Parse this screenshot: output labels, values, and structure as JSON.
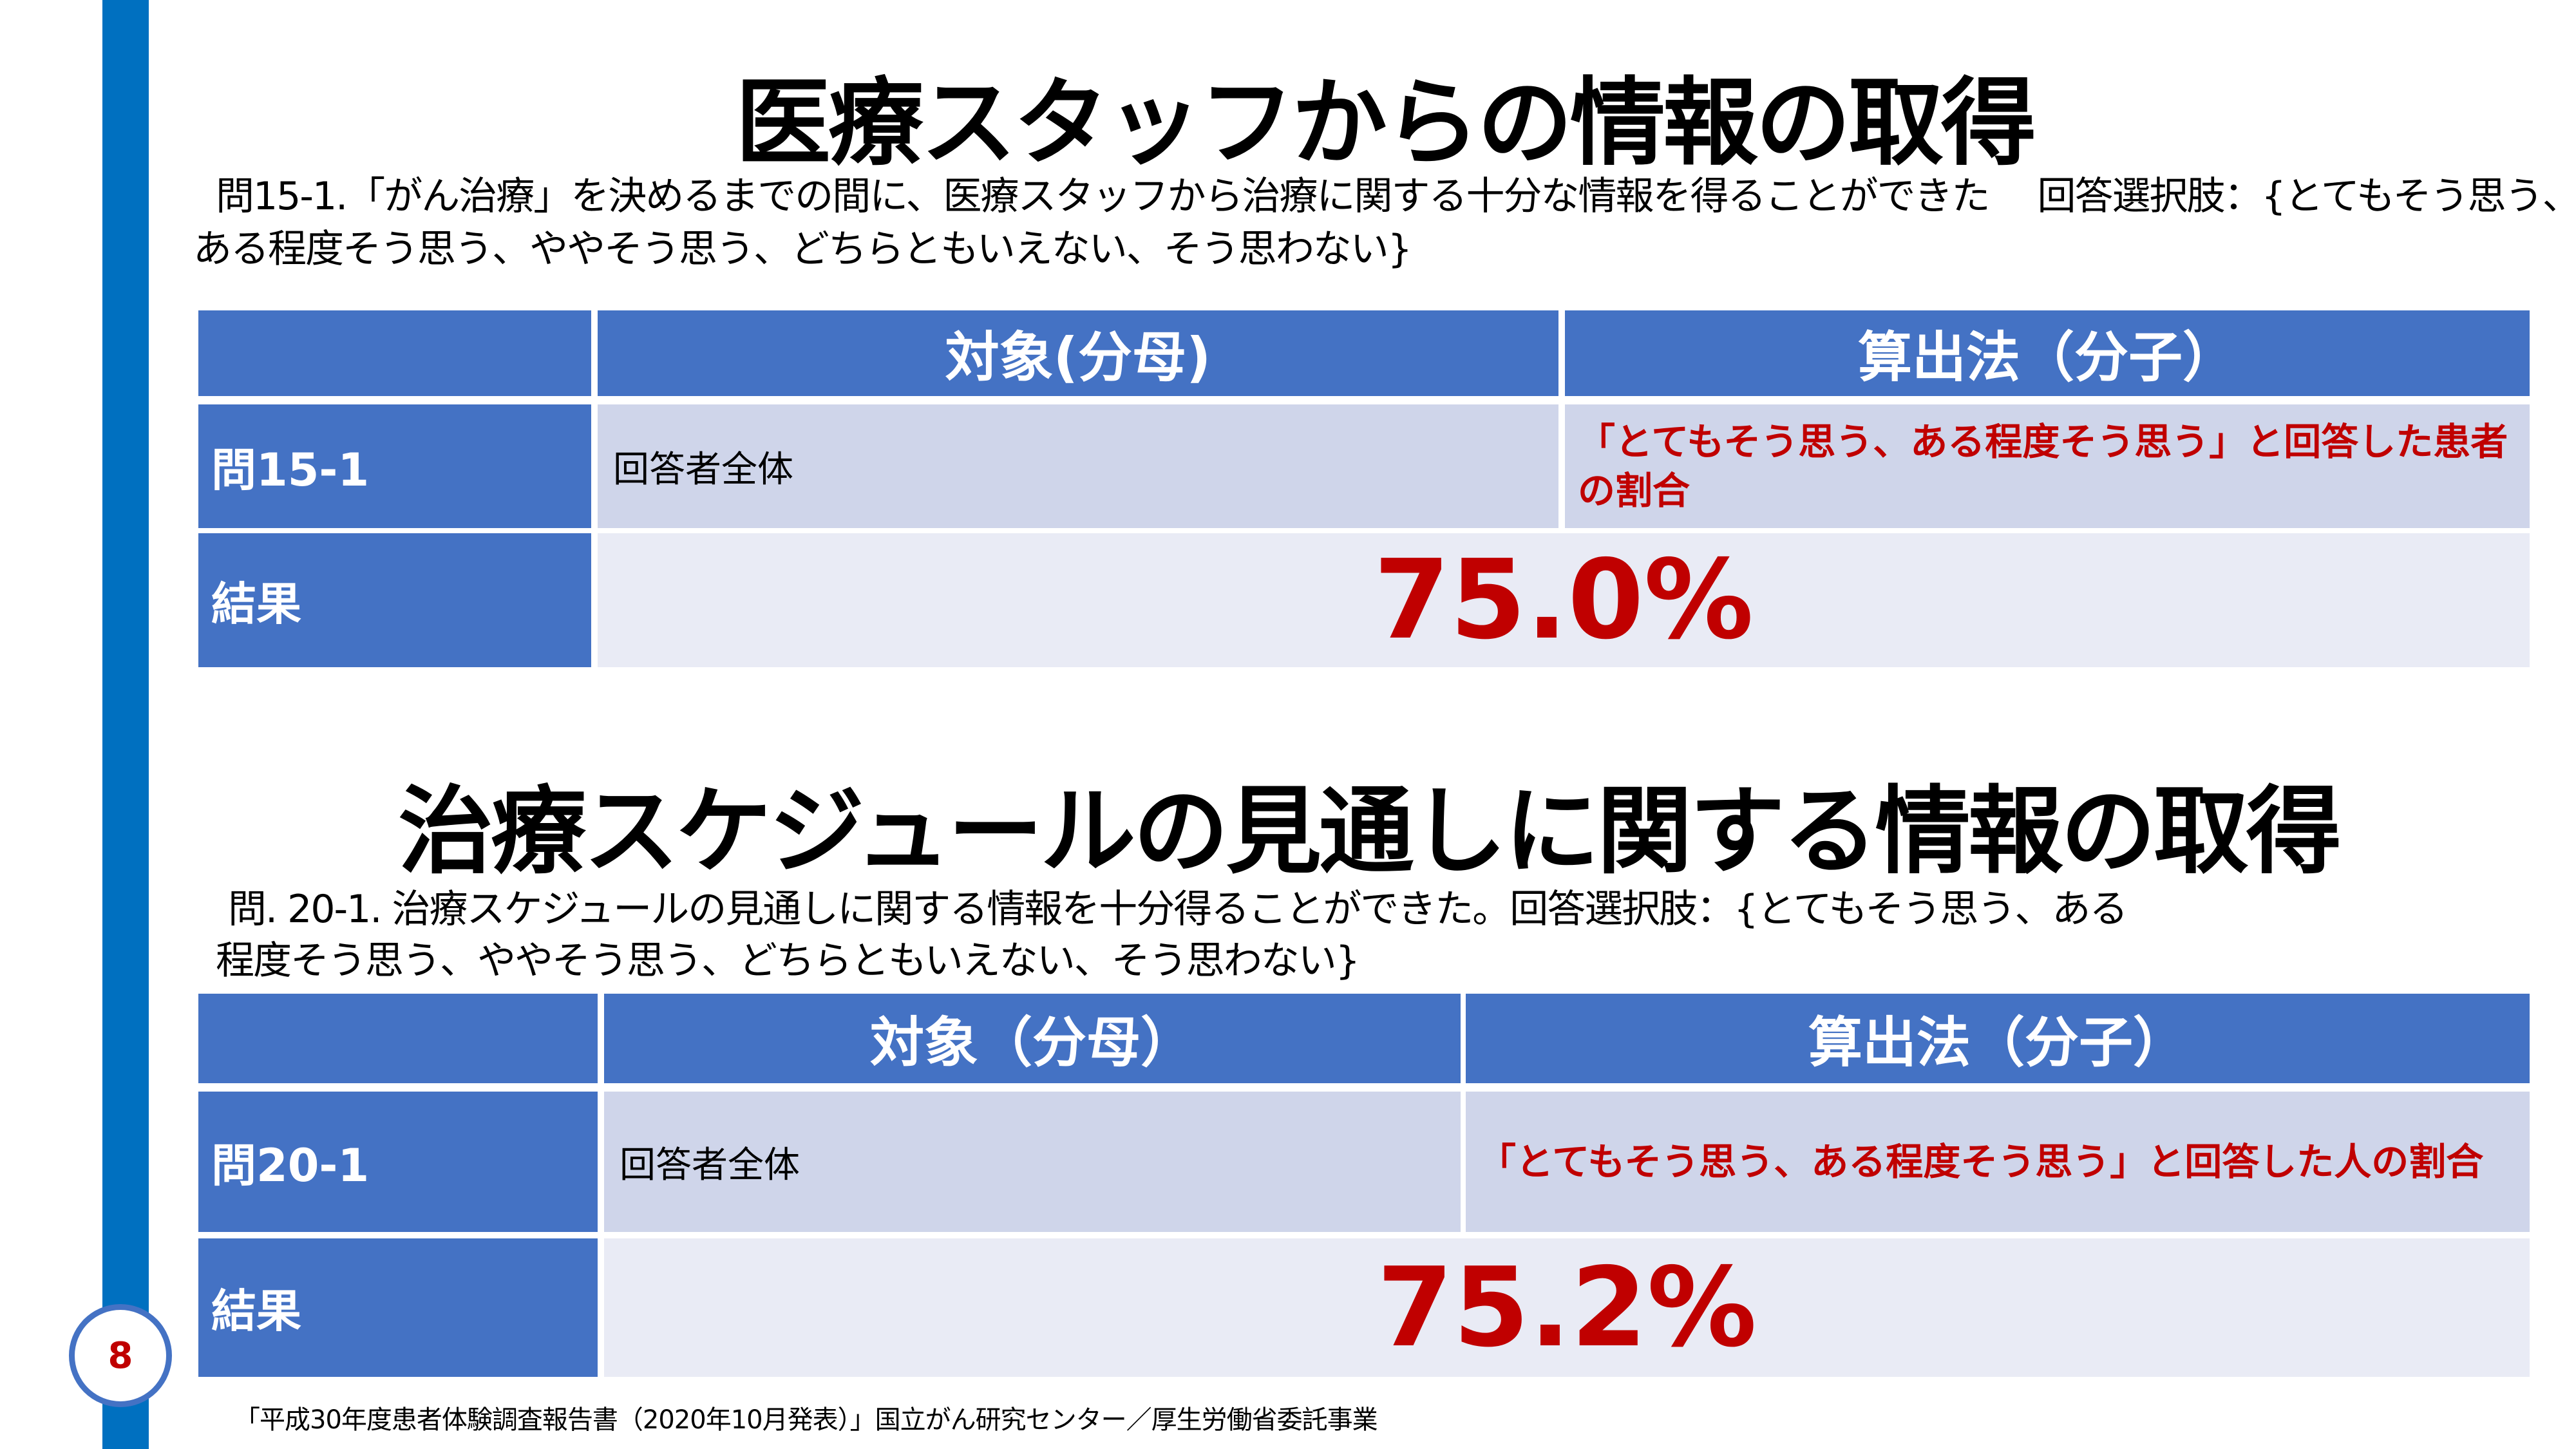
{
  "page_number": "8",
  "section1": {
    "title": "医療スタッフからの情報の取得",
    "question_line1": "問15-1.「がん治療」を決めるまでの間に、医療スタッフから治療に関する十分な情報を得ることができた　 回答選択肢：{とてもそう思う、",
    "question_line2": "ある程度そう思う、ややそう思う、どちらともいえない、そう思わない}",
    "table": {
      "header_denominator": "対象(分母)",
      "header_numerator": "算出法（分子）",
      "row_label": "問15-1",
      "denominator": "回答者全体",
      "numerator": "「とてもそう思う、ある程度そう思う」と回答した患者の割合",
      "result_label": "結果",
      "result": "75.0%"
    }
  },
  "section2": {
    "title": "治療スケジュールの見通しに関する情報の取得",
    "question_line1": "問. 20-1. 治療スケジュールの見通しに関する情報を十分得ることができた。回答選択肢：{とてもそう思う、ある",
    "question_line2": "程度そう思う、ややそう思う、どちらともいえない、そう思わない}",
    "table": {
      "header_denominator": "対象（分母）",
      "header_numerator": "算出法（分子）",
      "row_label": "問20-1",
      "denominator": "回答者全体",
      "numerator": "「とてもそう思う、ある程度そう思う」と回答した人の割合",
      "result_label": "結果",
      "result": "75.2%"
    }
  },
  "footnote": "「平成30年度患者体験調査報告書（2020年10月発表）」国立がん研究センター／厚生労働省委託事業",
  "colors": {
    "header": "#4472C4",
    "accent_red": "#C00000",
    "sidebar": "#0070C0"
  }
}
